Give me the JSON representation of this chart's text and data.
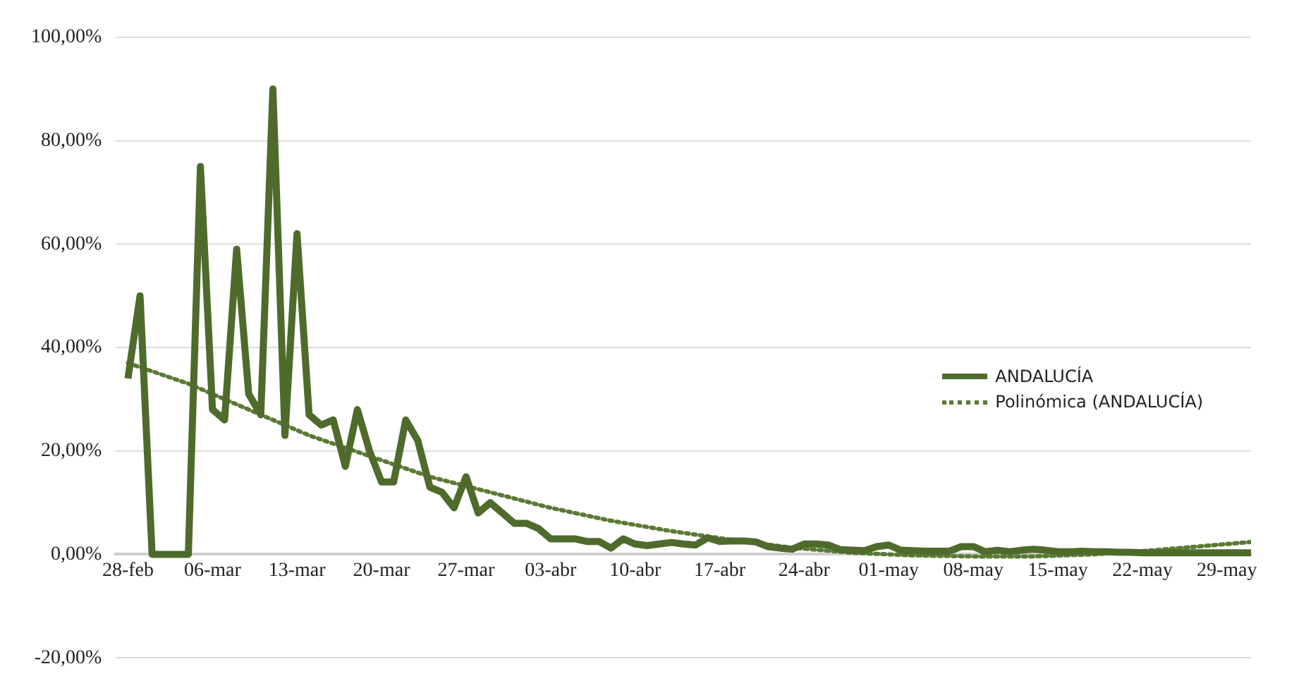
{
  "chart_data": {
    "type": "line",
    "xlim": [
      "--02-27",
      "--05-31"
    ],
    "xticks": [
      {
        "value": "--02-28",
        "label": "28-feb"
      },
      {
        "value": "--03-06",
        "label": "06-mar"
      },
      {
        "value": "--03-13",
        "label": "13-mar"
      },
      {
        "value": "--03-20",
        "label": "20-mar"
      },
      {
        "value": "--03-27",
        "label": "27-mar"
      },
      {
        "value": "--04-03",
        "label": "03-abr"
      },
      {
        "value": "--04-10",
        "label": "10-abr"
      },
      {
        "value": "--04-17",
        "label": "17-abr"
      },
      {
        "value": "--04-24",
        "label": "24-abr"
      },
      {
        "value": "--05-01",
        "label": "01-may"
      },
      {
        "value": "--05-08",
        "label": "08-may"
      },
      {
        "value": "--05-15",
        "label": "15-may"
      },
      {
        "value": "--05-22",
        "label": "22-may"
      },
      {
        "value": "--05-29",
        "label": "29-may"
      }
    ],
    "ylim": [
      -20,
      100
    ],
    "yticks": [
      {
        "value": -20,
        "label": "-20,00%"
      },
      {
        "value": 0,
        "label": "0,00%"
      },
      {
        "value": 20,
        "label": "20,00%"
      },
      {
        "value": 40,
        "label": "40,00%"
      },
      {
        "value": 60,
        "label": "60,00%"
      },
      {
        "value": 80,
        "label": "80,00%"
      },
      {
        "value": 100,
        "label": "100,00%"
      }
    ],
    "grid": "y",
    "legend": "right",
    "marker": "none",
    "series": [
      {
        "name": "ANDALUCÍA",
        "color": "#4e6b2c",
        "line_style": "solid",
        "x": [
          "--02-28",
          "--02-29",
          "--03-01",
          "--03-02",
          "--03-03",
          "--03-04",
          "--03-05",
          "--03-06",
          "--03-07",
          "--03-08",
          "--03-09",
          "--03-10",
          "--03-11",
          "--03-12",
          "--03-13",
          "--03-14",
          "--03-15",
          "--03-16",
          "--03-17",
          "--03-18",
          "--03-19",
          "--03-20",
          "--03-21",
          "--03-22",
          "--03-23",
          "--03-24",
          "--03-25",
          "--03-26",
          "--03-27",
          "--03-28",
          "--03-29",
          "--03-30",
          "--03-31",
          "--04-01",
          "--04-02",
          "--04-03",
          "--04-04",
          "--04-05",
          "--04-06",
          "--04-07",
          "--04-08",
          "--04-09",
          "--04-10",
          "--04-11",
          "--04-12",
          "--04-13",
          "--04-14",
          "--04-15",
          "--04-16",
          "--04-17",
          "--04-18",
          "--04-19",
          "--04-20",
          "--04-21",
          "--04-22",
          "--04-23",
          "--04-24",
          "--04-25",
          "--04-26",
          "--04-27",
          "--04-28",
          "--04-29",
          "--04-30",
          "--05-01",
          "--05-02",
          "--05-03",
          "--05-04",
          "--05-05",
          "--05-06",
          "--05-07",
          "--05-08",
          "--05-09",
          "--05-10",
          "--05-11",
          "--05-12",
          "--05-13",
          "--05-14",
          "--05-15",
          "--05-16",
          "--05-17",
          "--05-18",
          "--05-19",
          "--05-20",
          "--05-21",
          "--05-22",
          "--05-23",
          "--05-24",
          "--05-25",
          "--05-26",
          "--05-27",
          "--05-28",
          "--05-29",
          "--05-30",
          "--05-31"
        ],
        "values": [
          34,
          50,
          0,
          0,
          0,
          0,
          75,
          28,
          26,
          59,
          31,
          27,
          90,
          23,
          62,
          27,
          25,
          26,
          17,
          28,
          20,
          14,
          14,
          26,
          22,
          13,
          12,
          9,
          15,
          8,
          10,
          8,
          6,
          6,
          5,
          3,
          3,
          3,
          2.5,
          2.5,
          1.2,
          3,
          2,
          1.7,
          2,
          2.3,
          2,
          1.8,
          3.2,
          2.5,
          2.6,
          2.6,
          2.4,
          1.5,
          1.2,
          1,
          2,
          2,
          1.8,
          0.9,
          0.8,
          0.7,
          1.5,
          1.8,
          0.8,
          0.7,
          0.6,
          0.6,
          0.6,
          1.5,
          1.5,
          0.5,
          0.8,
          0.5,
          0.8,
          1,
          0.8,
          0.5,
          0.5,
          0.6,
          0.5,
          0.5,
          0.4,
          0.4,
          0.3,
          0.3,
          0.3,
          0.3,
          0.3,
          0.3,
          0.3,
          0.3,
          0.3,
          0.3
        ]
      },
      {
        "name": "Polinómica (ANDALUCÍA)",
        "color": "#5b7a35",
        "line_style": "dotted",
        "x": [
          "--02-28",
          "--03-04",
          "--03-09",
          "--03-14",
          "--03-19",
          "--03-24",
          "--03-29",
          "--04-03",
          "--04-08",
          "--04-13",
          "--04-18",
          "--04-23",
          "--04-28",
          "--05-03",
          "--05-08",
          "--05-13",
          "--05-18",
          "--05-23",
          "--05-28",
          "--05-31"
        ],
        "values": [
          37,
          33,
          28,
          23,
          19,
          15,
          12,
          9,
          6.5,
          4.5,
          2.8,
          1.3,
          0.3,
          -0.2,
          -0.4,
          -0.4,
          0,
          0.8,
          1.8,
          2.4
        ]
      }
    ]
  }
}
